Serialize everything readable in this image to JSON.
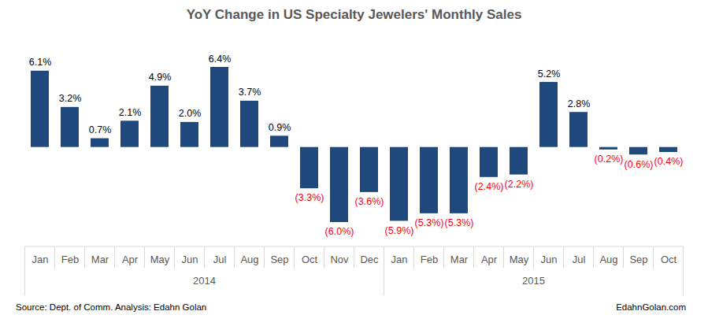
{
  "chart_data": {
    "type": "bar",
    "title": "YoY Change in US Specialty Jewelers' Monthly Sales",
    "categories": [
      "Jan",
      "Feb",
      "Mar",
      "Apr",
      "May",
      "Jun",
      "Jul",
      "Aug",
      "Sep",
      "Oct",
      "Nov",
      "Dec",
      "Jan",
      "Feb",
      "Mar",
      "Apr",
      "May",
      "Jun",
      "Jul",
      "Aug",
      "Sep",
      "Oct"
    ],
    "category_groups": [
      "2014",
      "2014",
      "2014",
      "2014",
      "2014",
      "2014",
      "2014",
      "2014",
      "2014",
      "2014",
      "2014",
      "2014",
      "2015",
      "2015",
      "2015",
      "2015",
      "2015",
      "2015",
      "2015",
      "2015",
      "2015",
      "2015"
    ],
    "values": [
      6.1,
      3.2,
      0.7,
      2.1,
      4.9,
      2.0,
      6.4,
      3.7,
      0.9,
      -3.3,
      -6.0,
      -3.6,
      -5.9,
      -5.3,
      -5.3,
      -2.4,
      -2.2,
      5.2,
      2.8,
      -0.2,
      -0.6,
      -0.4
    ],
    "value_labels": [
      "6.1%",
      "3.2%",
      "0.7%",
      "2.1%",
      "4.9%",
      "2.0%",
      "6.4%",
      "3.7%",
      "0.9%",
      "(3.3%)",
      "(6.0%)",
      "(3.6%)",
      "(5.9%)",
      "(5.3%)",
      "(5.3%)",
      "(2.4%)",
      "(2.2%)",
      "5.2%",
      "2.8%",
      "(0.2%)",
      "(0.6%)",
      "(0.4%)"
    ],
    "color": "#1f497d",
    "data_labels": true,
    "tick_labels": "x",
    "grid": false,
    "annotations": [
      "Source: Dept. of Comm. Analysis: Edahn Golan",
      "EdahnGolan.com"
    ]
  }
}
